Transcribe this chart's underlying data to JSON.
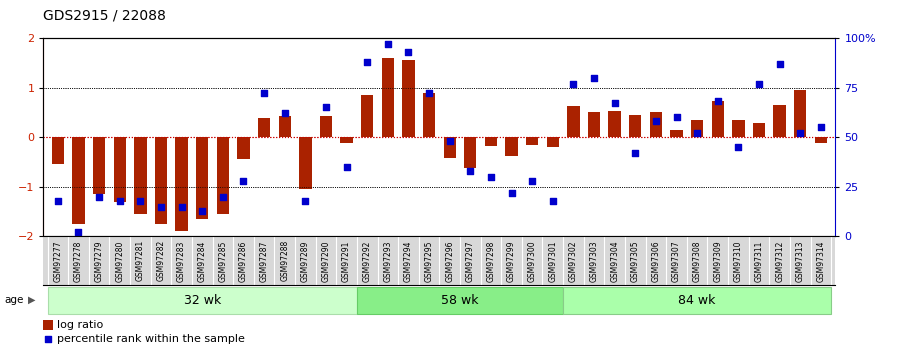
{
  "title": "GDS2915 / 22088",
  "samples": [
    "GSM97277",
    "GSM97278",
    "GSM97279",
    "GSM97280",
    "GSM97281",
    "GSM97282",
    "GSM97283",
    "GSM97284",
    "GSM97285",
    "GSM97286",
    "GSM97287",
    "GSM97288",
    "GSM97289",
    "GSM97290",
    "GSM97291",
    "GSM97292",
    "GSM97293",
    "GSM97294",
    "GSM97295",
    "GSM97296",
    "GSM97297",
    "GSM97298",
    "GSM97299",
    "GSM97300",
    "GSM97301",
    "GSM97302",
    "GSM97303",
    "GSM97304",
    "GSM97305",
    "GSM97306",
    "GSM97307",
    "GSM97308",
    "GSM97309",
    "GSM97310",
    "GSM97311",
    "GSM97312",
    "GSM97313",
    "GSM97314"
  ],
  "log_ratio": [
    -0.55,
    -1.75,
    -1.15,
    -1.3,
    -1.55,
    -1.75,
    -1.9,
    -1.65,
    -1.55,
    -0.45,
    0.38,
    0.42,
    -1.05,
    0.42,
    -0.12,
    0.85,
    1.6,
    1.55,
    0.9,
    -0.42,
    -0.62,
    -0.18,
    -0.38,
    -0.15,
    -0.2,
    0.62,
    0.5,
    0.52,
    0.45,
    0.5,
    0.15,
    0.35,
    0.72,
    0.35,
    0.28,
    0.65,
    0.95,
    -0.12
  ],
  "percentile": [
    18,
    2,
    20,
    18,
    18,
    15,
    15,
    13,
    20,
    28,
    72,
    62,
    18,
    65,
    35,
    88,
    97,
    93,
    72,
    48,
    33,
    30,
    22,
    28,
    18,
    77,
    80,
    67,
    42,
    58,
    60,
    52,
    68,
    45,
    77,
    87,
    52,
    55
  ],
  "groups": [
    {
      "label": "32 wk",
      "start": 0,
      "end": 15,
      "color": "#ccffcc",
      "border": "#aaddaa"
    },
    {
      "label": "58 wk",
      "start": 15,
      "end": 25,
      "color": "#88ee88",
      "border": "#66cc66"
    },
    {
      "label": "84 wk",
      "start": 25,
      "end": 38,
      "color": "#aaffaa",
      "border": "#88cc88"
    }
  ],
  "bar_color": "#aa2200",
  "dot_color": "#0000cc",
  "ylim": [
    -2,
    2
  ],
  "y2lim": [
    0,
    100
  ],
  "background_color": "#ffffff",
  "label_bg": "#d8d8d8",
  "title_fontsize": 10,
  "legend_items": [
    "log ratio",
    "percentile rank within the sample"
  ]
}
